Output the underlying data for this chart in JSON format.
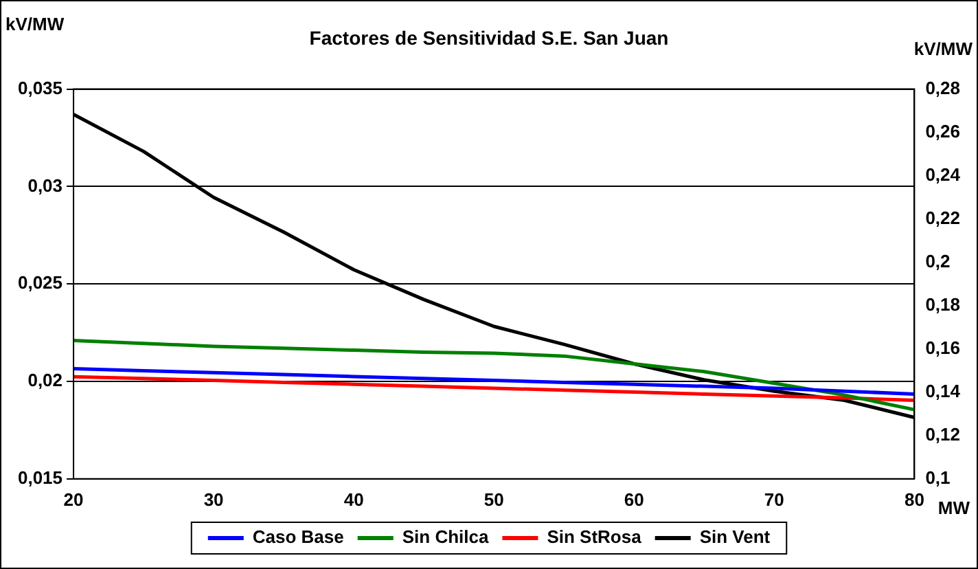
{
  "chart_data": {
    "type": "line",
    "title": "Factores de Sensitividad S.E. San Juan",
    "ylabel": "kV/MW",
    "y2label": "kV/MW",
    "xlabel": "MW",
    "x": [
      20,
      25,
      30,
      35,
      40,
      45,
      50,
      55,
      60,
      65,
      70,
      75,
      80
    ],
    "xlim": [
      20,
      80
    ],
    "xticks": [
      20,
      30,
      40,
      50,
      60,
      70,
      80
    ],
    "ylim": [
      0.015,
      0.035
    ],
    "yticks": [
      {
        "value": 0.015,
        "label": "0,015"
      },
      {
        "value": 0.02,
        "label": "0,02"
      },
      {
        "value": 0.025,
        "label": "0,025"
      },
      {
        "value": 0.03,
        "label": "0,03"
      },
      {
        "value": 0.035,
        "label": "0,035"
      }
    ],
    "y2lim": [
      0.1,
      0.28
    ],
    "y2ticks": [
      {
        "value": 0.1,
        "label": "0,1"
      },
      {
        "value": 0.12,
        "label": "0,12"
      },
      {
        "value": 0.14,
        "label": "0,14"
      },
      {
        "value": 0.16,
        "label": "0,16"
      },
      {
        "value": 0.18,
        "label": "0,18"
      },
      {
        "value": 0.2,
        "label": "0,2"
      },
      {
        "value": 0.22,
        "label": "0,22"
      },
      {
        "value": 0.24,
        "label": "0,24"
      },
      {
        "value": 0.26,
        "label": "0,26"
      },
      {
        "value": 0.28,
        "label": "0,28"
      }
    ],
    "series": [
      {
        "name": "Caso Base",
        "color": "#0000ff",
        "values": [
          0.02065,
          0.02055,
          0.02045,
          0.02035,
          0.02025,
          0.02015,
          0.02005,
          0.01995,
          0.01985,
          0.01975,
          0.01965,
          0.0195,
          0.01935
        ]
      },
      {
        "name": "Sin Chilca",
        "color": "#008000",
        "values": [
          0.0221,
          0.02195,
          0.0218,
          0.0217,
          0.0216,
          0.0215,
          0.02145,
          0.0213,
          0.0209,
          0.0205,
          0.0199,
          0.0193,
          0.01855
        ]
      },
      {
        "name": "Sin StRosa",
        "color": "#ff0000",
        "values": [
          0.02024,
          0.02015,
          0.02005,
          0.01995,
          0.01985,
          0.01975,
          0.01965,
          0.01955,
          0.01945,
          0.01935,
          0.01925,
          0.01915,
          0.01903
        ]
      },
      {
        "name": "Sin Vent",
        "color": "#000000",
        "values": [
          0.0337,
          0.0318,
          0.02944,
          0.02766,
          0.02573,
          0.0242,
          0.02282,
          0.0219,
          0.0209,
          0.02008,
          0.0195,
          0.01903,
          0.01815
        ]
      }
    ],
    "grid": "y",
    "legend": "bottom",
    "marker": "none",
    "line_style": "solid"
  }
}
